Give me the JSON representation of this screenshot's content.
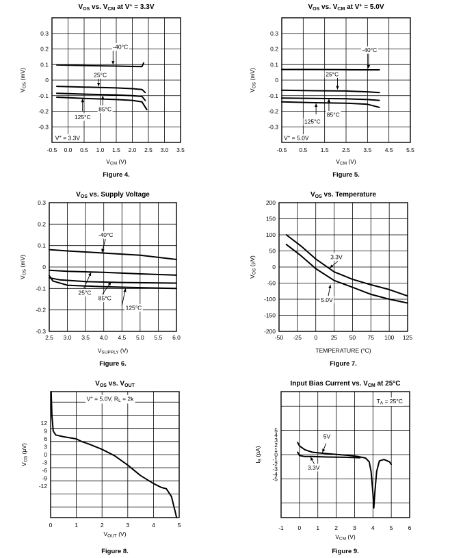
{
  "chart_data": [
    {
      "type": "line",
      "title_html": "V<tspan font-size='7' dy='2'>OS</tspan><tspan dy='-2'> vs. V</tspan><tspan font-size='7' dy='2'>CM</tspan><tspan dy='-2'> at V</tspan><tspan font-size='7' dy='-3'>+</tspan><tspan dy='3'> = 3.3V</tspan>",
      "title": "VOS vs. VCM at V+ = 3.3V",
      "caption": "Figure 4.",
      "xlabel": "VCM (V)",
      "xlabel_html": "V<tspan font-size='6.5' dy='1.5'>CM</tspan><tspan dy='-1.5'> (V)</tspan>",
      "ylabel": "VOS (mV)",
      "ylabel_html": "V<tspan font-size='6.5' dy='1.5'>OS</tspan><tspan dy='-1.5'> (mV)</tspan>",
      "xlim": [
        -0.5,
        3.5
      ],
      "ylim": [
        -0.4,
        0.4
      ],
      "xticks": [
        -0.5,
        0.0,
        0.5,
        1.0,
        1.5,
        2.0,
        2.5,
        3.0,
        3.5
      ],
      "xtick_labels": [
        "-0.5",
        "0.0",
        "0.5",
        "1.0",
        "1.5",
        "2.0",
        "2.5",
        "3.0",
        "3.5"
      ],
      "yticks": [
        0.3,
        0.2,
        0.1,
        0,
        -0.1,
        -0.2,
        -0.3
      ],
      "ytick_labels": [
        "0.3",
        "0.2",
        "0.1",
        "0",
        "-0.1",
        "-0.2",
        "-0.3"
      ],
      "series": [
        {
          "name": "-40°C",
          "x": [
            -0.35,
            0.5,
            1.5,
            2.0,
            2.3,
            2.35
          ],
          "y": [
            0.097,
            0.093,
            0.09,
            0.088,
            0.087,
            0.11
          ]
        },
        {
          "name": "25°C",
          "x": [
            -0.35,
            0.5,
            1.5,
            2.0,
            2.3,
            2.4
          ],
          "y": [
            -0.04,
            -0.045,
            -0.05,
            -0.055,
            -0.06,
            -0.08
          ]
        },
        {
          "name": "85°C",
          "x": [
            -0.35,
            0.5,
            1.5,
            2.0,
            2.3,
            2.4
          ],
          "y": [
            -0.085,
            -0.09,
            -0.095,
            -0.1,
            -0.105,
            -0.13
          ]
        },
        {
          "name": "125°C",
          "x": [
            -0.35,
            0.5,
            1.5,
            2.0,
            2.3,
            2.45
          ],
          "y": [
            -0.11,
            -0.118,
            -0.125,
            -0.13,
            -0.14,
            -0.19
          ]
        }
      ],
      "annotations": [
        {
          "text": "-40°C",
          "x": 1.4,
          "y": 0.2
        },
        {
          "text": "25°C",
          "x": 0.8,
          "y": 0.02
        },
        {
          "text": "85°C",
          "x": 0.95,
          "y": -0.2
        },
        {
          "text": "125°C",
          "x": 0.2,
          "y": -0.25
        },
        {
          "text_html": "V<tspan font-size='6' dy='-3'>+</tspan><tspan dy='3'> = 3.3V</tspan>",
          "text": "V+ = 3.3V",
          "x": -0.4,
          "y": -0.385
        }
      ],
      "arrows": [
        [
          1.4,
          0.2,
          1.4,
          0.1
        ],
        [
          0.95,
          0.02,
          0.95,
          -0.04
        ],
        [
          1.08,
          -0.17,
          1.08,
          -0.1
        ],
        [
          0.45,
          -0.2,
          0.45,
          -0.12
        ]
      ]
    },
    {
      "type": "line",
      "title_html": "V<tspan font-size='7' dy='2'>OS</tspan><tspan dy='-2'> vs. V</tspan><tspan font-size='7' dy='2'>CM</tspan><tspan dy='-2'> at V</tspan><tspan font-size='7' dy='-3'>+</tspan><tspan dy='3'> = 5.0V</tspan>",
      "title": "VOS vs. VCM at V+ = 5.0V",
      "caption": "Figure 5.",
      "xlabel": "VCM (V)",
      "xlabel_html": "V<tspan font-size='6.5' dy='1.5'>CM</tspan><tspan dy='-1.5'> (V)</tspan>",
      "ylabel": "VOS (mV)",
      "ylabel_html": "V<tspan font-size='6.5' dy='1.5'>OS</tspan><tspan dy='-1.5'> (mV)</tspan>",
      "xlim": [
        -0.5,
        5.5
      ],
      "ylim": [
        -0.4,
        0.4
      ],
      "xticks": [
        -0.5,
        0.5,
        1.5,
        2.5,
        3.5,
        4.5,
        5.5
      ],
      "xtick_labels": [
        "-0.5",
        "0.5",
        "1.5",
        "2.5",
        "3.5",
        "4.5",
        "5.5"
      ],
      "yticks": [
        0.3,
        0.2,
        0.1,
        0,
        -0.1,
        -0.2,
        -0.3
      ],
      "ytick_labels": [
        "0.3",
        "0.2",
        "0.1",
        "0",
        "-0.1",
        "-0.2",
        "-0.3"
      ],
      "series": [
        {
          "name": "-40°C",
          "x": [
            -0.5,
            1.0,
            2.5,
            3.5,
            4.05
          ],
          "y": [
            0.068,
            0.068,
            0.067,
            0.066,
            0.066
          ]
        },
        {
          "name": "25°C",
          "x": [
            -0.5,
            1.0,
            2.5,
            3.5,
            4.05
          ],
          "y": [
            -0.065,
            -0.068,
            -0.07,
            -0.075,
            -0.08
          ]
        },
        {
          "name": "85°C",
          "x": [
            -0.5,
            1.0,
            2.5,
            3.5,
            4.05
          ],
          "y": [
            -0.115,
            -0.118,
            -0.12,
            -0.125,
            -0.13
          ]
        },
        {
          "name": "125°C",
          "x": [
            -0.5,
            1.0,
            2.5,
            3.5,
            4.05
          ],
          "y": [
            -0.14,
            -0.145,
            -0.148,
            -0.155,
            -0.175
          ]
        }
      ],
      "annotations": [
        {
          "text": "-40°C",
          "x": 3.25,
          "y": 0.18
        },
        {
          "text": "25°C",
          "x": 1.55,
          "y": 0.025
        },
        {
          "text": "85°C",
          "x": 1.6,
          "y": -0.235
        },
        {
          "text": "125°C",
          "x": 0.55,
          "y": -0.28
        },
        {
          "text_html": "V<tspan font-size='6' dy='-3'>+</tspan><tspan dy='3'> = 5.0V</tspan>",
          "text": "V+ = 5.0V",
          "x": -0.4,
          "y": -0.385
        }
      ],
      "arrows": [
        [
          3.55,
          0.17,
          3.55,
          0.075
        ],
        [
          2.1,
          0.015,
          2.1,
          -0.06
        ],
        [
          1.7,
          -0.2,
          1.7,
          -0.12
        ],
        [
          1.1,
          -0.22,
          1.1,
          -0.15
        ]
      ]
    },
    {
      "type": "line",
      "title_html": "V<tspan font-size='7' dy='2'>OS</tspan><tspan dy='-2'> vs. Supply Voltage</tspan>",
      "title": "VOS vs. Supply Voltage",
      "caption": "Figure 6.",
      "xlabel": "VSUPPLY (V)",
      "xlabel_html": "V<tspan font-size='6.5' dy='1.5'>SUPPLY</tspan><tspan dy='-1.5'> (V)</tspan>",
      "ylabel": "VOS (mV)",
      "ylabel_html": "V<tspan font-size='6.5' dy='1.5'>OS</tspan><tspan dy='-1.5'> (mV)</tspan>",
      "xlim": [
        2.5,
        6.0
      ],
      "ylim": [
        -0.3,
        0.3
      ],
      "xticks": [
        2.5,
        3.0,
        3.5,
        4.0,
        4.5,
        5.0,
        5.5,
        6.0
      ],
      "xtick_labels": [
        "2.5",
        "3.0",
        "3.5",
        "4.0",
        "4.5",
        "5.0",
        "5.5",
        "6.0"
      ],
      "yticks": [
        0.3,
        0.2,
        0.1,
        0,
        -0.1,
        -0.2,
        -0.3
      ],
      "ytick_labels": [
        "0.3",
        "0.2",
        "0.1",
        "0",
        "-0.1",
        "-0.2",
        "-0.3"
      ],
      "series": [
        {
          "name": "-40°C",
          "x": [
            2.5,
            3.0,
            4.0,
            5.0,
            6.0
          ],
          "y": [
            0.081,
            0.075,
            0.065,
            0.055,
            0.035
          ]
        },
        {
          "name": "25°C",
          "x": [
            2.5,
            3.0,
            4.0,
            5.0,
            6.0
          ],
          "y": [
            -0.015,
            -0.02,
            -0.025,
            -0.032,
            -0.038
          ]
        },
        {
          "name": "85°C",
          "x": [
            2.5,
            2.8,
            3.5,
            4.5,
            6.0
          ],
          "y": [
            -0.05,
            -0.06,
            -0.068,
            -0.072,
            -0.075
          ]
        },
        {
          "name": "125°C",
          "x": [
            2.5,
            2.6,
            3.0,
            4.0,
            5.0,
            6.0
          ],
          "y": [
            -0.04,
            -0.065,
            -0.085,
            -0.092,
            -0.096,
            -0.1
          ]
        }
      ],
      "annotations": [
        {
          "text": "-40°C",
          "x": 3.85,
          "y": 0.14
        },
        {
          "text": "25°C",
          "x": 3.3,
          "y": -0.13
        },
        {
          "text": "85°C",
          "x": 3.85,
          "y": -0.155
        },
        {
          "text": "125°C",
          "x": 4.6,
          "y": -0.2
        }
      ],
      "arrows": [
        [
          4.05,
          0.13,
          3.95,
          0.068
        ],
        [
          3.45,
          -0.1,
          3.65,
          -0.025
        ],
        [
          3.95,
          -0.13,
          4.2,
          -0.07
        ],
        [
          4.5,
          -0.18,
          4.6,
          -0.1
        ]
      ]
    },
    {
      "type": "line",
      "title_html": "V<tspan font-size='7' dy='2'>OS</tspan><tspan dy='-2'> vs. Temperature</tspan>",
      "title": "VOS vs. Temperature",
      "caption": "Figure 7.",
      "xlabel": "TEMPERATURE (°C)",
      "xlabel_html": "TEMPERATURE (°C)",
      "ylabel": "VOS (µV)",
      "ylabel_html": "V<tspan font-size='6.5' dy='1.5'>OS</tspan><tspan dy='-1.5'> (µV)</tspan>",
      "xlim": [
        -50,
        125
      ],
      "ylim": [
        -200,
        200
      ],
      "xticks": [
        -50,
        -25,
        0,
        25,
        50,
        75,
        100,
        125
      ],
      "xtick_labels": [
        "-50",
        "-25",
        "0",
        "25",
        "50",
        "75",
        "100",
        "125"
      ],
      "yticks": [
        200,
        150,
        100,
        50,
        0,
        -50,
        -100,
        -150,
        -200
      ],
      "ytick_labels": [
        "200",
        "150",
        "100",
        "50",
        "0",
        "-50",
        "-100",
        "-150",
        "-200"
      ],
      "series": [
        {
          "name": "3.3V",
          "x": [
            -40,
            -20,
            0,
            25,
            50,
            75,
            100,
            125
          ],
          "y": [
            100,
            65,
            25,
            -15,
            -38,
            -55,
            -70,
            -90
          ]
        },
        {
          "name": "5.0V",
          "x": [
            -40,
            -20,
            0,
            25,
            50,
            75,
            100,
            125
          ],
          "y": [
            70,
            35,
            -5,
            -42,
            -63,
            -85,
            -100,
            -112
          ]
        }
      ],
      "annotations": [
        {
          "text": "3.3V",
          "x": 20,
          "y": 25
        },
        {
          "text": "5.0V",
          "x": 7,
          "y": -108
        }
      ],
      "arrows": [
        [
          30,
          18,
          19,
          -3
        ],
        [
          17,
          -90,
          20,
          -55
        ]
      ]
    },
    {
      "type": "line",
      "title_html": "V<tspan font-size='7' dy='2'>OS</tspan><tspan dy='-2'> vs. V</tspan><tspan font-size='7' dy='2'>OUT</tspan>",
      "title": "VOS vs. VOUT",
      "caption": "Figure 8.",
      "xlabel": "VOUT (V)",
      "xlabel_html": "V<tspan font-size='6.5' dy='1.5'>OUT</tspan><tspan dy='-1.5'> (V)</tspan>",
      "ylabel": "VOS (µV)",
      "ylabel_html": "V<tspan font-size='6.5' dy='1.5'>OS</tspan><tspan dy='-1.5'> (µV)</tspan>",
      "xlim": [
        0,
        5
      ],
      "ylim": [
        -24,
        24
      ],
      "xticks": [
        0,
        1,
        2,
        3,
        4,
        5
      ],
      "xtick_labels": [
        "0",
        "1",
        "2",
        "3",
        "4",
        "5"
      ],
      "yticks": [
        12,
        9,
        6,
        3,
        0,
        -3,
        -6,
        -9,
        -12
      ],
      "ytick_labels": [
        "12",
        "9",
        "6",
        "3",
        "0",
        "-3",
        "-6",
        "-9",
        "-12"
      ],
      "grid_ys": [
        20,
        15,
        10,
        5,
        0,
        -5,
        -10,
        -15,
        -20
      ],
      "series": [
        {
          "name": "VOS",
          "x": [
            0.02,
            0.05,
            0.1,
            0.2,
            0.5,
            1.0,
            1.2,
            1.5,
            2.0,
            2.5,
            3.0,
            3.5,
            4.0,
            4.3,
            4.5,
            4.7,
            4.85,
            4.9
          ],
          "y": [
            24,
            15,
            9,
            7.5,
            6.8,
            6,
            5,
            4,
            2,
            -0.5,
            -4,
            -8,
            -11,
            -12.5,
            -13,
            -16,
            -22,
            -24
          ]
        }
      ],
      "annotations": [
        {
          "text_html": "V<tspan font-size='6' dy='-3'>+</tspan><tspan dy='3'> = 5.0V, R</tspan><tspan font-size='6.5' dy='1.5'>L</tspan><tspan dy='-1.5'> = 2k</tspan>",
          "text": "V+ = 5.0V, RL = 2k",
          "x": 1.4,
          "y": 20.5
        }
      ],
      "arrows": []
    },
    {
      "type": "line",
      "title_html": "Input Bias Current vs. V<tspan font-size='7' dy='2'>CM</tspan><tspan dy='-2'> at 25°C</tspan>",
      "title": "Input Bias Current vs. VCM at 25°C",
      "caption": "Figure 9.",
      "xlabel": "VCM (V)",
      "xlabel_html": "V<tspan font-size='6.5' dy='1.5'>CM</tspan><tspan dy='-1.5'> (V)</tspan>",
      "ylabel": "IB (pA)",
      "ylabel_html": "I<tspan font-size='6.5' dy='1.5'>B</tspan><tspan dy='-1.5'> (pA)</tspan>",
      "xlim": [
        -1,
        6
      ],
      "ylim": [
        -13,
        13
      ],
      "xticks": [
        -1,
        0,
        1,
        2,
        3,
        4,
        5,
        6
      ],
      "xtick_labels": [
        "-1",
        "0",
        "1",
        "2",
        "3",
        "4",
        "5",
        "6"
      ],
      "yticks": [
        5,
        4,
        3,
        2,
        1,
        0,
        -1,
        -2,
        -3,
        -4,
        -5
      ],
      "ytick_labels": [
        "5",
        "4",
        "3",
        "2",
        "1",
        "0",
        "-1",
        "-2",
        "-3",
        "-4",
        "-5"
      ],
      "grid_ys": [
        10,
        5,
        0,
        -5,
        -10
      ],
      "series": [
        {
          "name": "5V",
          "x": [
            -0.1,
            0.0,
            0.3,
            0.7,
            1.5,
            2.5,
            3.2,
            3.6,
            3.8,
            3.9,
            4.0,
            4.05,
            4.1,
            4.2,
            4.35,
            4.6,
            4.9,
            5.0
          ],
          "y": [
            2.5,
            1.8,
            1.0,
            0.5,
            0.2,
            -0.1,
            -0.4,
            -0.7,
            -1.5,
            -3.5,
            -8,
            -11,
            -8,
            -3.5,
            -1.3,
            -1.0,
            -1.5,
            -2.0
          ]
        },
        {
          "name": "3.3V",
          "x": [
            -0.1,
            0.0,
            0.3,
            0.7,
            1.5,
            2.5,
            3.3
          ],
          "y": [
            0.5,
            -0.2,
            -0.4,
            -0.4,
            -0.5,
            -0.55,
            -0.65
          ]
        }
      ],
      "annotations": [
        {
          "text": "5V",
          "x": 1.3,
          "y": 3.3
        },
        {
          "text": "3.3V",
          "x": 0.45,
          "y": -3.1
        },
        {
          "text_html": "T<tspan font-size='6.5' dy='1.5'>A</tspan><tspan dy='-1.5'> = 25°C</tspan>",
          "text": "TA = 25°C",
          "x": 4.2,
          "y": 10.6
        }
      ],
      "arrows": [
        [
          1.45,
          2.3,
          1.25,
          0.45
        ],
        [
          0.85,
          -2.2,
          0.6,
          -0.5
        ]
      ]
    }
  ]
}
